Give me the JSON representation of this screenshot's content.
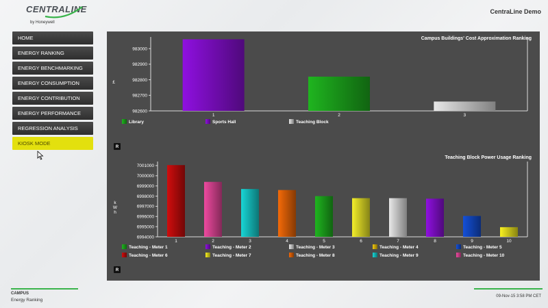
{
  "header": {
    "logo_text": "CENTRALINE",
    "logo_sub": "by Honeywell",
    "app_title": "CentraLine Demo"
  },
  "nav": {
    "items": [
      {
        "label": "HOME",
        "active": false
      },
      {
        "label": "ENERGY RANKING",
        "active": false
      },
      {
        "label": "ENERGY BENCHMARKING",
        "active": false
      },
      {
        "label": "ENERGY CONSUMPTION",
        "active": false
      },
      {
        "label": "ENERGY CONTRIBUTION",
        "active": false
      },
      {
        "label": "ENERGY PERFORMANCE",
        "active": false
      },
      {
        "label": "REGRESSION ANALYSIS",
        "active": false
      },
      {
        "label": "KIOSK MODE",
        "active": true
      }
    ]
  },
  "chart_data": [
    {
      "type": "bar",
      "title": "Campus Buildings' Cost Approximation Ranking",
      "ylabel": "£",
      "ylim": [
        982600,
        983075
      ],
      "yticks": [
        982600,
        982700,
        982800,
        982900,
        983000
      ],
      "categories": [
        "1",
        "2",
        "3"
      ],
      "values": [
        983060,
        982820,
        982660
      ],
      "colors": [
        "#8f10e0",
        "#1fb51f",
        "#e8e8e8"
      ],
      "legend": [
        {
          "name": "Library",
          "color": "#1fb51f"
        },
        {
          "name": "Sports Hall",
          "color": "#8f10e0"
        },
        {
          "name": "Teaching Block",
          "color": "#e8e8e8"
        }
      ],
      "reset_label": "R"
    },
    {
      "type": "bar",
      "title": "Teaching Block Power Usage Ranking",
      "ylabel": "kWh",
      "ylim": [
        6994000,
        7001400
      ],
      "yticks": [
        6994000,
        6995000,
        6996000,
        6997000,
        6998000,
        6999000,
        7000000,
        7001000
      ],
      "categories": [
        "1",
        "2",
        "3",
        "4",
        "5",
        "6",
        "7",
        "8",
        "9",
        "10"
      ],
      "values": [
        7001050,
        6999400,
        6998700,
        6998600,
        6998000,
        6997800,
        6997800,
        6997750,
        6996050,
        6994950
      ],
      "colors": [
        "#d00d0d",
        "#ee4aa0",
        "#18d6d6",
        "#f46a08",
        "#1fb51f",
        "#f2ee2a",
        "#e8e8e8",
        "#8f10e0",
        "#1450d8",
        "#f8f020"
      ],
      "legend": [
        {
          "name": "Teaching - Meter 1",
          "color": "#1fb51f"
        },
        {
          "name": "Teaching - Meter 2",
          "color": "#8f10e0"
        },
        {
          "name": "Teaching - Meter 3",
          "color": "#e8e8e8"
        },
        {
          "name": "Teaching - Meter 4",
          "color": "#f2c810"
        },
        {
          "name": "Teaching - Meter 5",
          "color": "#1450d8"
        },
        {
          "name": "Teaching - Meter 6",
          "color": "#d00d0d"
        },
        {
          "name": "Teaching - Meter 7",
          "color": "#f8f020"
        },
        {
          "name": "Teaching - Meter 8",
          "color": "#f46a08"
        },
        {
          "name": "Teaching - Meter 9",
          "color": "#18d6d6"
        },
        {
          "name": "Teaching - Meter 10",
          "color": "#ee4aa0"
        }
      ],
      "reset_label": "R"
    }
  ],
  "footer": {
    "context": "CAMPUS",
    "subtitle": "Energy Ranking",
    "timestamp": "09-Nov-15 3:58 PM CET"
  }
}
